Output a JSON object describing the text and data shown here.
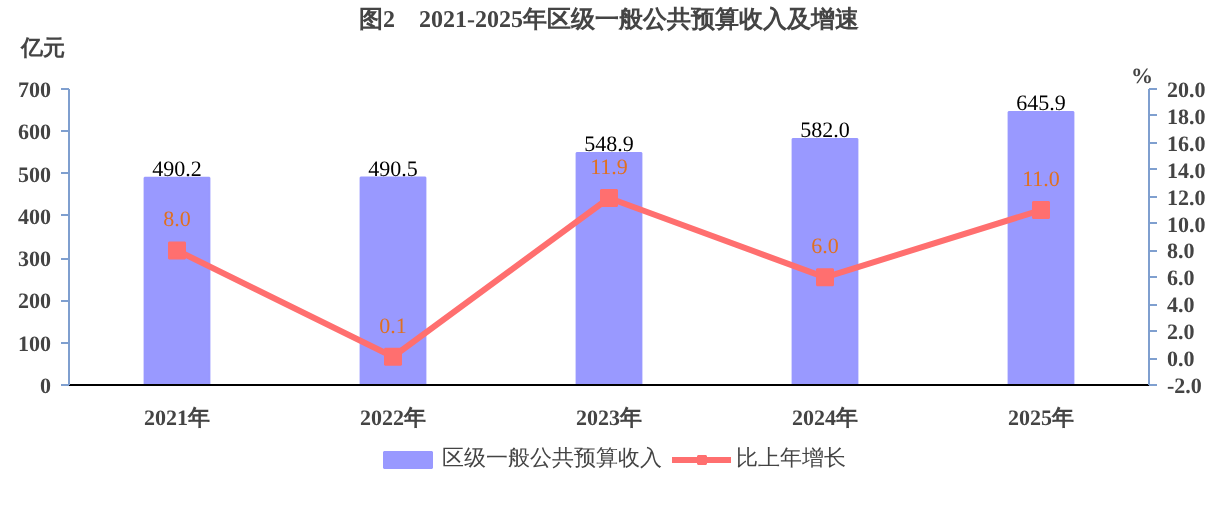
{
  "chart_data": {
    "type": "bar",
    "title": "图2　2021-2025年区级一般公共预算收入及增速",
    "ylabel": "亿元",
    "y2label": "%",
    "categories": [
      "2021年",
      "2022年",
      "2023年",
      "2024年",
      "2025年"
    ],
    "series": [
      {
        "name": "区级一般公共预算收入",
        "color": "#9999ff",
        "values": [
          490.2,
          490.5,
          548.9,
          582.0,
          645.9
        ],
        "value_labels": [
          "490.2",
          "490.5",
          "548.9",
          "582.0",
          "645.9"
        ]
      },
      {
        "name": "比上年增长",
        "type": "line",
        "axis": "y2",
        "color": "#ff6f6f",
        "marker": "square",
        "values": [
          8.0,
          0.1,
          11.9,
          6.0,
          11.0
        ],
        "value_labels": [
          "8.0",
          "0.1",
          "11.9",
          "6.0",
          "11.0"
        ]
      }
    ],
    "ylim": [
      0,
      700
    ],
    "yticks": [
      0,
      100,
      200,
      300,
      400,
      500,
      600,
      700
    ],
    "y2lim": [
      -2,
      20
    ],
    "y2ticks": [
      {
        "value": -2,
        "label": "-2.0"
      },
      {
        "value": 0,
        "label": "0.0"
      },
      {
        "value": 2,
        "label": "2.0"
      },
      {
        "value": 4,
        "label": "4.0"
      },
      {
        "value": 6,
        "label": "6.0"
      },
      {
        "value": 8,
        "label": "8.0"
      },
      {
        "value": 10,
        "label": "10.0"
      },
      {
        "value": 12,
        "label": "12.0"
      },
      {
        "value": 14,
        "label": "14.0"
      },
      {
        "value": 16,
        "label": "16.0"
      },
      {
        "value": 18,
        "label": "18.0"
      },
      {
        "value": 20,
        "label": "20.0"
      }
    ],
    "grid": false,
    "legend": "bottom"
  }
}
